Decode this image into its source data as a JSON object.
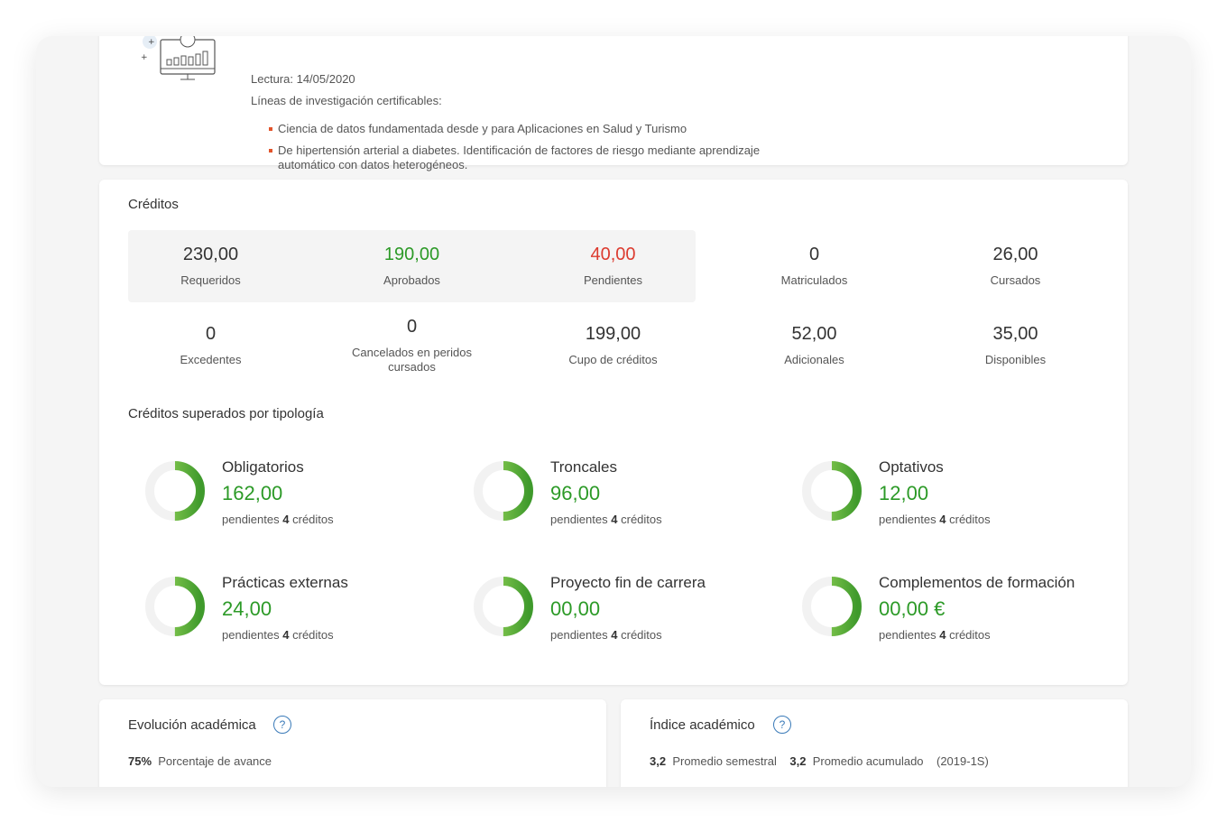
{
  "thesis": {
    "lectura": "Lectura: 14/05/2020",
    "lineas_title": "Líneas de investigación certificables:",
    "lineas": [
      "Ciencia de datos fundamentada desde y para Aplicaciones en Salud y Turismo",
      "De hipertensión arterial a diabetes. Identificación de factores de riesgo mediante aprendizaje automático con datos heterogéneos."
    ]
  },
  "creditos": {
    "title": "Créditos",
    "row1": [
      {
        "value": "230,00",
        "label": "Requeridos"
      },
      {
        "value": "190,00",
        "label": "Aprobados"
      },
      {
        "value": "40,00",
        "label": "Pendientes"
      },
      {
        "value": "0",
        "label": "Matriculados"
      },
      {
        "value": "26,00",
        "label": "Cursados"
      }
    ],
    "row2": [
      {
        "value": "0",
        "label": "Excedentes"
      },
      {
        "value": "0",
        "label": "Cancelados en peridos cursados"
      },
      {
        "value": "199,00",
        "label": "Cupo de créditos"
      },
      {
        "value": "52,00",
        "label": "Adicionales"
      },
      {
        "value": "35,00",
        "label": "Disponibles"
      }
    ],
    "colors": {
      "green": "#2c9a27",
      "red": "#dc3b2f"
    }
  },
  "tipologia": {
    "title": "Créditos superados por tipología",
    "pend_prefix": "pendientes",
    "pend_suffix": "créditos",
    "items": [
      {
        "name": "Obligatorios",
        "value": "162,00",
        "pending": "4",
        "progress": 0.5
      },
      {
        "name": "Troncales",
        "value": "96,00",
        "pending": "4",
        "progress": 0.5
      },
      {
        "name": "Optativos",
        "value": "12,00",
        "pending": "4",
        "progress": 0.5
      },
      {
        "name": "Prácticas externas",
        "value": "24,00",
        "pending": "4",
        "progress": 0.5
      },
      {
        "name": "Proyecto fin de carrera",
        "value": "00,00",
        "pending": "4",
        "progress": 0.5
      },
      {
        "name": "Complementos de formación",
        "value": "00,00 €",
        "pending": "4",
        "progress": 0.5
      }
    ]
  },
  "evolucion": {
    "title": "Evolución académica",
    "percent": "75%",
    "percent_label": "Porcentaje de avance"
  },
  "indice": {
    "title": "Índice académico",
    "sem_value": "3,2",
    "sem_label": "Promedio semestral",
    "acc_value": "3,2",
    "acc_label": "Promedio acumulado",
    "period": "(2019-1S)"
  },
  "help_symbol": "?"
}
